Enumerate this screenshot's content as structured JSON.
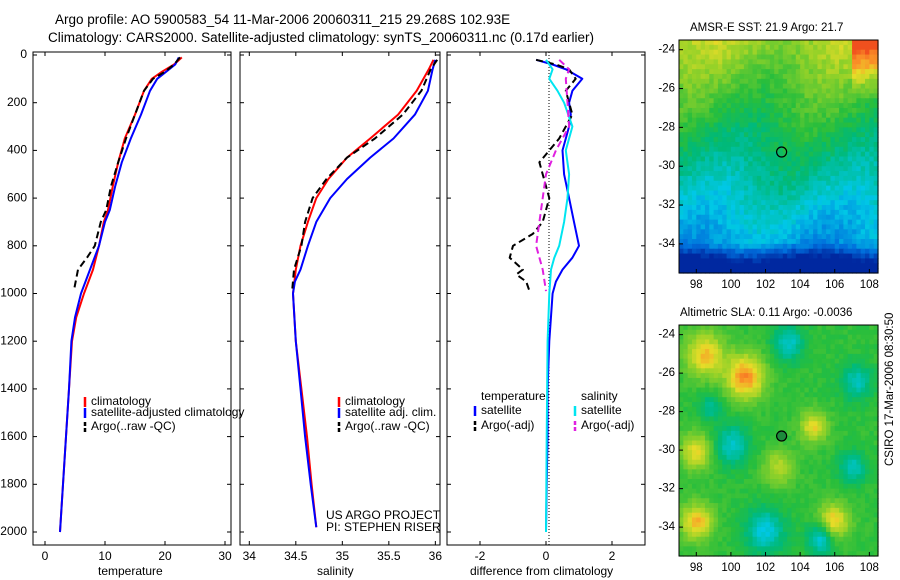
{
  "figure": {
    "title_line1": "Argo profile: AO 5900583_54 11-Mar-2006 20060311_215 29.268S 102.93E",
    "title_line2": "Climatology: CARS2000. Satellite-adjusted climatology: synTS_20060311.nc (0.17d earlier)",
    "side_label": "CSIRO 17-Mar-2006 08:30:50",
    "credit_line1": "US ARGO PROJECT",
    "credit_line2": "PI: STEPHEN RISER"
  },
  "colors": {
    "climatology": "#ff0000",
    "satellite": "#0000ff",
    "argo": "#000000",
    "salinity_satellite": "#00e5f0",
    "salinity_argo": "#e020e0"
  },
  "chart_data": [
    {
      "type": "line",
      "id": "temperature",
      "xlabel": "temperature",
      "ylabel": "",
      "xlim": [
        -2,
        31
      ],
      "ylim": [
        2050,
        0
      ],
      "xticks": [
        0,
        10,
        20,
        30
      ],
      "yticks": [
        0,
        200,
        400,
        600,
        800,
        1000,
        1200,
        1400,
        1600,
        1800,
        2000
      ],
      "legend": [
        "climatology",
        "satellite-adjusted climatology",
        "Argo(..raw -QC)"
      ],
      "series": [
        {
          "name": "climatology",
          "style": "solid",
          "color": "#ff0000",
          "x": [
            22.8,
            21.5,
            19.5,
            17.8,
            16.5,
            15,
            13.3,
            12.2,
            11.3,
            10.5,
            9.8,
            9,
            8,
            6.5,
            5.2,
            4.5,
            4,
            3.5,
            3,
            2.5
          ],
          "y": [
            10,
            40,
            70,
            100,
            150,
            250,
            350,
            450,
            550,
            650,
            700,
            800,
            900,
            1000,
            1100,
            1200,
            1400,
            1600,
            1800,
            2000
          ]
        },
        {
          "name": "satellite-adjusted climatology",
          "style": "solid",
          "color": "#0000ff",
          "x": [
            22.3,
            21.7,
            20.2,
            18.7,
            17.5,
            16,
            14.3,
            12.8,
            11.7,
            10.8,
            10,
            9,
            7.5,
            6,
            5,
            4.4,
            4,
            3.5,
            3,
            2.5
          ],
          "y": [
            10,
            40,
            70,
            100,
            150,
            250,
            350,
            450,
            550,
            650,
            700,
            800,
            900,
            1000,
            1100,
            1200,
            1400,
            1600,
            1800,
            2000
          ]
        },
        {
          "name": "Argo(..raw -QC)",
          "style": "dashed",
          "color": "#000000",
          "x": [
            22.5,
            21.5,
            20,
            18,
            16.5,
            15,
            13.5,
            12.2,
            11,
            10.2,
            9.3,
            8.3,
            7,
            5.5,
            4.8
          ],
          "y": [
            10,
            40,
            70,
            100,
            150,
            250,
            350,
            450,
            550,
            650,
            700,
            800,
            850,
            900,
            990
          ]
        }
      ]
    },
    {
      "type": "line",
      "id": "salinity",
      "xlabel": "salinity",
      "ylabel": "",
      "xlim": [
        33.9,
        36.05
      ],
      "ylim": [
        2050,
        0
      ],
      "xticks": [
        34,
        34.5,
        35,
        35.5,
        36
      ],
      "legend": [
        "climatology",
        "satellite adj. clim.",
        "Argo(..raw -QC)"
      ],
      "series": [
        {
          "name": "climatology",
          "style": "solid",
          "color": "#ff0000",
          "x": [
            35.98,
            35.93,
            35.8,
            35.6,
            35.3,
            35.05,
            34.85,
            34.72,
            34.63,
            34.55,
            34.5,
            34.47,
            34.5,
            34.56,
            34.62,
            34.67,
            34.72
          ],
          "y": [
            20,
            60,
            150,
            250,
            350,
            430,
            520,
            600,
            700,
            800,
            900,
            1000,
            1200,
            1400,
            1600,
            1800,
            1980
          ]
        },
        {
          "name": "satellite adj. clim.",
          "style": "solid",
          "color": "#0000ff",
          "x": [
            36.0,
            35.97,
            35.92,
            35.78,
            35.55,
            35.3,
            35.05,
            34.87,
            34.72,
            34.63,
            34.55,
            34.49,
            34.47,
            34.5,
            34.55,
            34.6,
            34.66,
            34.72
          ],
          "y": [
            20,
            60,
            150,
            250,
            350,
            430,
            520,
            600,
            700,
            800,
            900,
            950,
            1000,
            1200,
            1400,
            1600,
            1800,
            1980
          ]
        },
        {
          "name": "Argo(..raw -QC)",
          "style": "dashed",
          "color": "#000000",
          "x": [
            36.02,
            35.95,
            35.85,
            35.65,
            35.35,
            35.05,
            34.83,
            34.68,
            34.6,
            34.56,
            34.52,
            34.48,
            34.46
          ],
          "y": [
            20,
            60,
            150,
            250,
            350,
            430,
            520,
            600,
            700,
            800,
            850,
            900,
            990
          ]
        }
      ]
    },
    {
      "type": "line",
      "id": "difference",
      "xlabel": "difference from climatology",
      "ylabel": "",
      "xlim": [
        -3.0,
        3.0
      ],
      "ylim": [
        2050,
        0
      ],
      "xticks": [
        -2,
        0,
        2
      ],
      "legend_temperature_header": "temperature",
      "legend_salinity_header": "salinity",
      "legend": [
        "satellite",
        "Argo(-adj)",
        "satellite",
        "Argo(-adj)"
      ],
      "series": [
        {
          "name": "satellite",
          "group": "temperature",
          "style": "solid",
          "color": "#0000ff",
          "x": [
            -0.3,
            0.2,
            0.6,
            1.1,
            0.8,
            0.7,
            0.75,
            0.7,
            0.6,
            0.5,
            0.55,
            0.7,
            0.85,
            1.0,
            0.8,
            0.5,
            0.3,
            0.2,
            0.1,
            0.05,
            0.05,
            0.02,
            0.0
          ],
          "y": [
            20,
            40,
            60,
            100,
            150,
            200,
            250,
            300,
            350,
            400,
            500,
            600,
            700,
            800,
            850,
            900,
            950,
            1000,
            1200,
            1400,
            1600,
            1800,
            2000
          ]
        },
        {
          "name": "Argo(-adj)",
          "group": "temperature",
          "style": "dashed",
          "color": "#000000",
          "x": [
            -0.3,
            0.3,
            0.7,
            0.9,
            0.6,
            0.7,
            0.8,
            0.6,
            0.4,
            -0.2,
            -0.1,
            0.1,
            -0.1,
            -0.4,
            -1.0,
            -1.1,
            -0.7,
            -0.9,
            -0.6,
            -0.5
          ],
          "y": [
            20,
            40,
            60,
            100,
            150,
            200,
            250,
            300,
            350,
            450,
            500,
            600,
            700,
            750,
            800,
            850,
            900,
            920,
            950,
            990
          ]
        },
        {
          "name": "satellite",
          "group": "salinity",
          "style": "solid",
          "color": "#00e5f0",
          "x": [
            0.0,
            0.2,
            0.1,
            0.35,
            0.55,
            0.8,
            0.6,
            0.7,
            0.65,
            0.55,
            0.4,
            0.25,
            0.15,
            0.1,
            0.05,
            0.02,
            0.0
          ],
          "y": [
            20,
            60,
            100,
            150,
            200,
            300,
            400,
            500,
            600,
            700,
            800,
            850,
            900,
            1000,
            1200,
            1600,
            2000
          ]
        },
        {
          "name": "Argo(-adj)",
          "group": "salinity",
          "style": "dashed",
          "color": "#e020e0",
          "x": [
            0.4,
            0.7,
            0.6,
            0.65,
            0.7,
            0.5,
            0.3,
            0.15,
            0.0,
            -0.1,
            -0.2,
            -0.3,
            -0.2,
            -0.1,
            0.0
          ],
          "y": [
            20,
            60,
            100,
            200,
            300,
            350,
            400,
            450,
            500,
            600,
            700,
            800,
            850,
            900,
            990
          ]
        }
      ]
    },
    {
      "type": "heatmap",
      "id": "sst_map",
      "title": "AMSR-E SST: 21.9  Argo: 21.7",
      "xlim": [
        97,
        108.5
      ],
      "ylim": [
        -35.5,
        -23.5
      ],
      "xticks": [
        98,
        100,
        102,
        104,
        106,
        108
      ],
      "yticks": [
        -24,
        -26,
        -28,
        -30,
        -32,
        -34
      ],
      "marker": {
        "lon": 102.93,
        "lat": -29.268
      }
    },
    {
      "type": "heatmap",
      "id": "sla_map",
      "title": "Altimetric SLA: 0.11  Argo: -0.0036",
      "xlim": [
        97,
        108.5
      ],
      "ylim": [
        -35.5,
        -23.5
      ],
      "xticks": [
        98,
        100,
        102,
        104,
        106,
        108
      ],
      "yticks": [
        -24,
        -26,
        -28,
        -30,
        -32,
        -34
      ],
      "marker": {
        "lon": 102.93,
        "lat": -29.268
      }
    }
  ]
}
